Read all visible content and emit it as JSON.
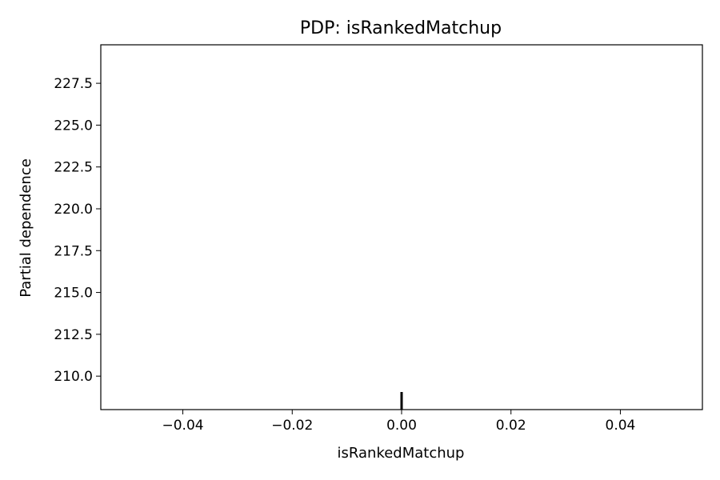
{
  "chart_data": {
    "type": "line",
    "title": "PDP: isRankedMatchup",
    "xlabel": "isRankedMatchup",
    "ylabel": "Partial dependence",
    "xlim": [
      -0.055,
      0.055
    ],
    "ylim": [
      208.0,
      229.8
    ],
    "xticks": [
      {
        "value": -0.04,
        "label": "−0.04"
      },
      {
        "value": -0.02,
        "label": "−0.02"
      },
      {
        "value": 0.0,
        "label": "0.00"
      },
      {
        "value": 0.02,
        "label": "0.02"
      },
      {
        "value": 0.04,
        "label": "0.04"
      }
    ],
    "yticks": [
      {
        "value": 210.0,
        "label": "210.0"
      },
      {
        "value": 212.5,
        "label": "212.5"
      },
      {
        "value": 215.0,
        "label": "215.0"
      },
      {
        "value": 217.5,
        "label": "217.5"
      },
      {
        "value": 220.0,
        "label": "220.0"
      },
      {
        "value": 222.5,
        "label": "222.5"
      },
      {
        "value": 225.0,
        "label": "225.0"
      },
      {
        "value": 227.5,
        "label": "227.5"
      }
    ],
    "rug": [
      0.0
    ],
    "rug_color": "#000000",
    "grid": false,
    "legend": "none"
  }
}
